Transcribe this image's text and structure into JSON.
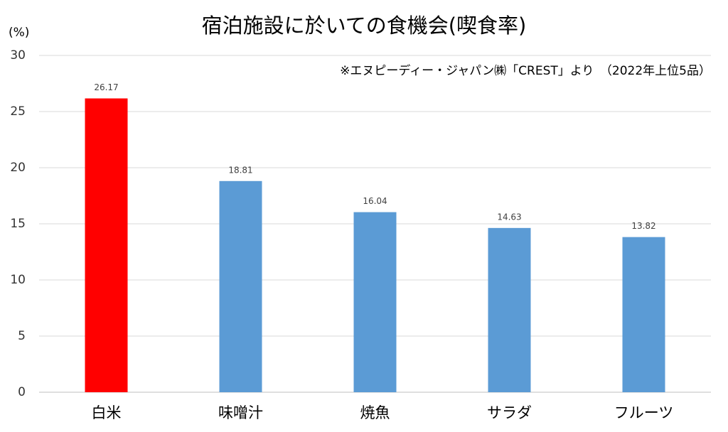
{
  "chart_data": {
    "type": "bar",
    "title": "宿泊施設に於いての食機会(喫食率)",
    "y_label": "(%)",
    "annotation": "※エヌピーディー・ジャパン㈱「CREST」より　（2022年上位5品）",
    "categories": [
      "白米",
      "味噌汁",
      "焼魚",
      "サラダ",
      "フルーツ"
    ],
    "values": [
      26.17,
      18.81,
      16.04,
      14.63,
      13.82
    ],
    "colors": [
      "#ff0000",
      "#5b9bd5",
      "#5b9bd5",
      "#5b9bd5",
      "#5b9bd5"
    ],
    "ylim": [
      0,
      30
    ],
    "yticks": [
      0,
      5,
      10,
      15,
      20,
      25,
      30
    ],
    "grid": true
  }
}
